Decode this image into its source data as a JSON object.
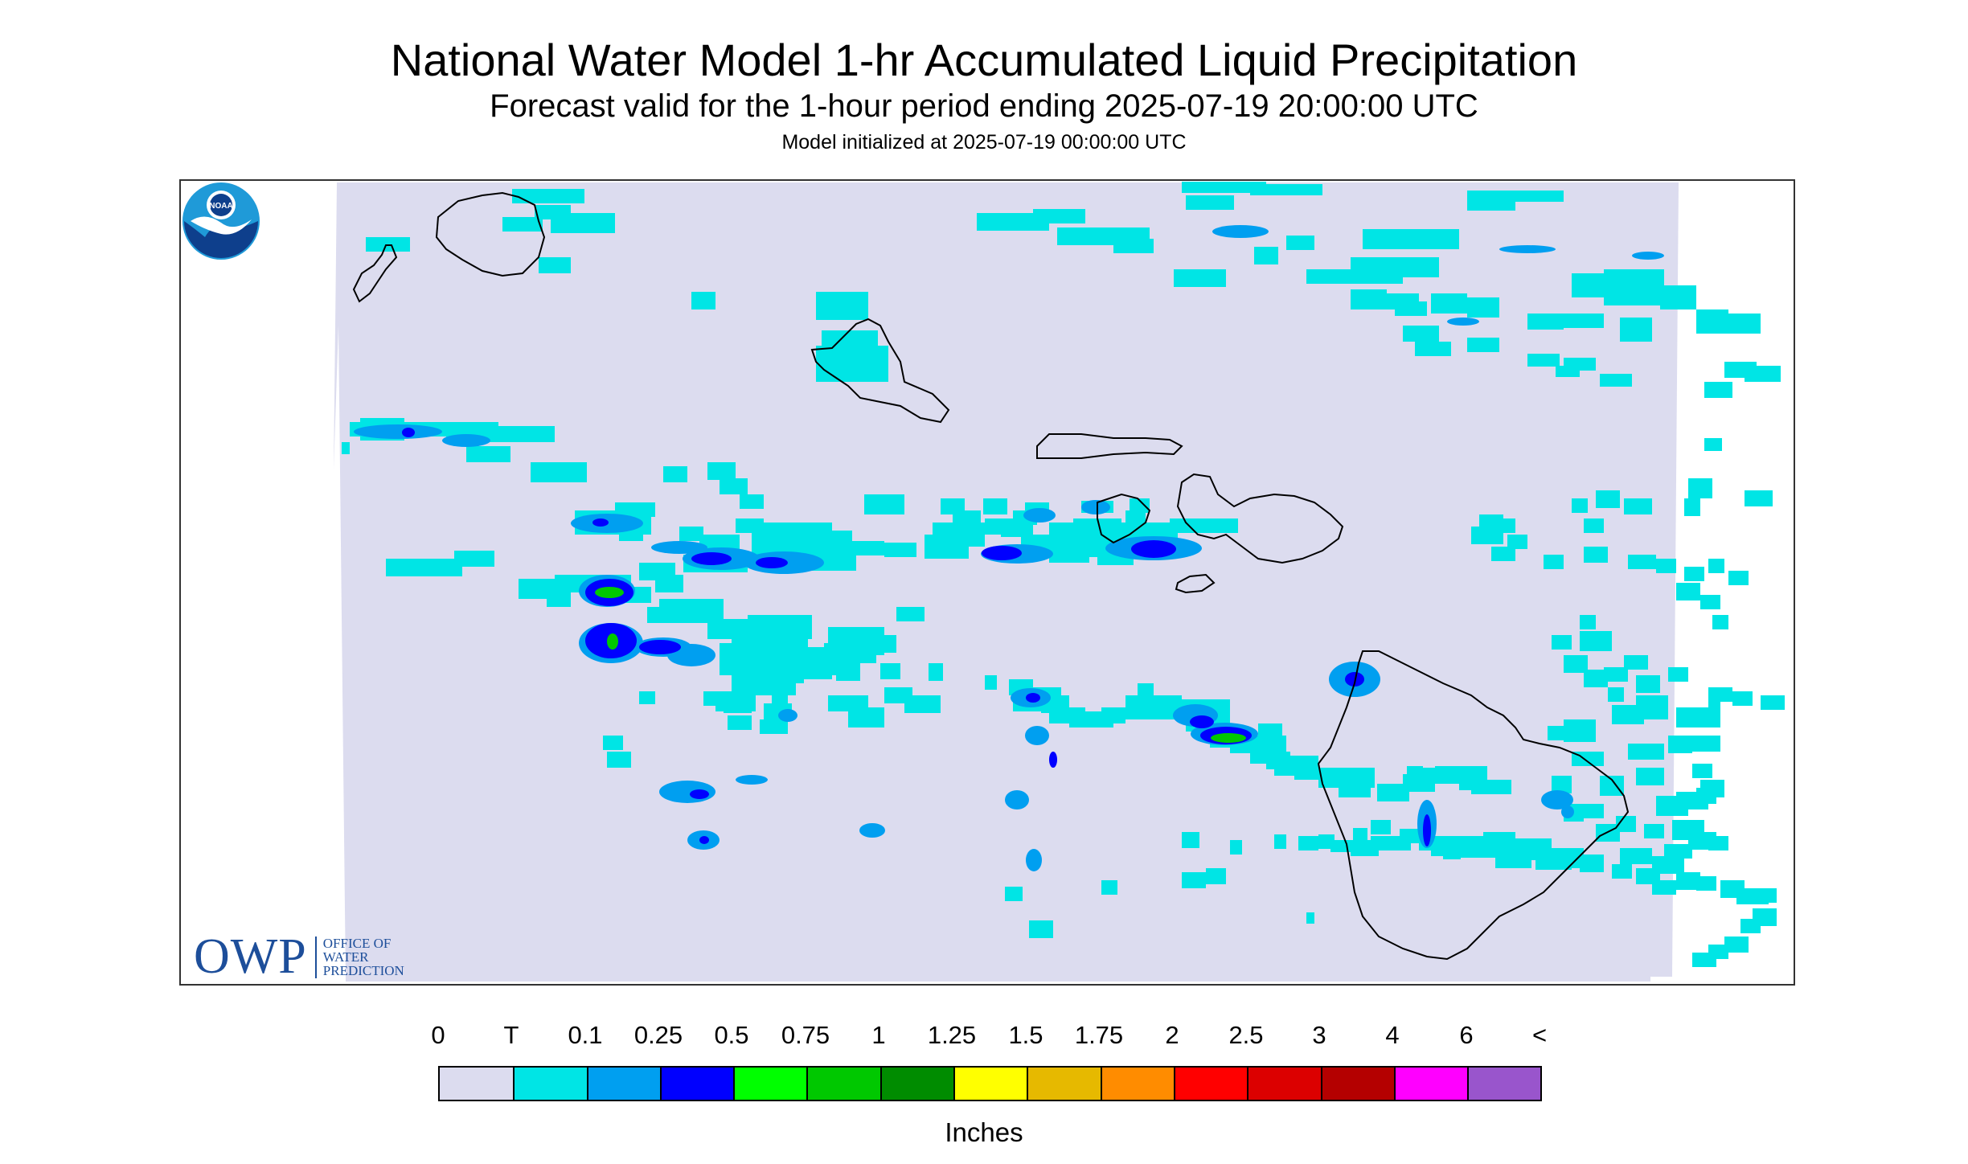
{
  "header": {
    "title": "National Water Model 1-hr Accumulated Liquid Precipitation",
    "subtitle": "Forecast valid for the 1-hour period ending 2025-07-19 20:00:00 UTC",
    "init_line": "Model initialized at 2025-07-19 00:00:00 UTC"
  },
  "map": {
    "region_features": [
      "Kauai",
      "Niihau",
      "Oahu",
      "Molokai",
      "Lanai",
      "Maui",
      "Kahoolawe",
      "Hawaii"
    ],
    "background_color": "#dcdcef",
    "precip_cells": [
      {
        "level": "T"
      },
      {
        "level": "0.1"
      },
      {
        "level": "0.25"
      },
      {
        "level": "0.5"
      }
    ]
  },
  "logos": {
    "owp_text": "OWP",
    "owp_lines": [
      "OFFICE OF",
      "WATER",
      "PREDICTION"
    ],
    "noaa_text": "NOAA"
  },
  "legend": {
    "labels": [
      "0",
      "T",
      "0.1",
      "0.25",
      "0.5",
      "0.75",
      "1",
      "1.25",
      "1.5",
      "1.75",
      "2",
      "2.5",
      "3",
      "4",
      "6",
      "<"
    ],
    "colors": [
      "#dcdcef",
      "#00e5e5",
      "#009ff0",
      "#0000ff",
      "#00ff00",
      "#00c800",
      "#008c00",
      "#ffff00",
      "#e6b900",
      "#ff8c00",
      "#ff0000",
      "#dc0000",
      "#b40000",
      "#ff00ff",
      "#9955cc"
    ],
    "units": "Inches"
  }
}
